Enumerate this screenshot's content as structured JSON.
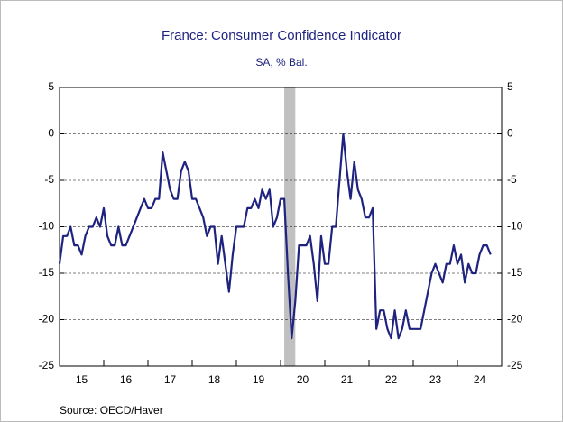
{
  "chart_data": {
    "type": "line",
    "title": "France: Consumer Confidence Indicator",
    "subtitle": "SA, % Bal.",
    "source": "Source:  OECD/Haver",
    "x": [
      2015,
      2015.083,
      2015.167,
      2015.25,
      2015.333,
      2015.417,
      2015.5,
      2015.583,
      2015.667,
      2015.75,
      2015.833,
      2015.917,
      2016,
      2016.083,
      2016.167,
      2016.25,
      2016.333,
      2016.417,
      2016.5,
      2016.583,
      2016.667,
      2016.75,
      2016.833,
      2016.917,
      2017,
      2017.083,
      2017.167,
      2017.25,
      2017.333,
      2017.417,
      2017.5,
      2017.583,
      2017.667,
      2017.75,
      2017.833,
      2017.917,
      2018,
      2018.083,
      2018.167,
      2018.25,
      2018.333,
      2018.417,
      2018.5,
      2018.583,
      2018.667,
      2018.75,
      2018.833,
      2018.917,
      2019,
      2019.083,
      2019.167,
      2019.25,
      2019.333,
      2019.417,
      2019.5,
      2019.583,
      2019.667,
      2019.75,
      2019.833,
      2019.917,
      2020,
      2020.083,
      2020.167,
      2020.25,
      2020.333,
      2020.417,
      2020.5,
      2020.583,
      2020.667,
      2020.75,
      2020.833,
      2020.917,
      2021,
      2021.083,
      2021.167,
      2021.25,
      2021.333,
      2021.417,
      2021.5,
      2021.583,
      2021.667,
      2021.75,
      2021.833,
      2021.917,
      2022,
      2022.083,
      2022.167,
      2022.25,
      2022.333,
      2022.417,
      2022.5,
      2022.583,
      2022.667,
      2022.75,
      2022.833,
      2022.917,
      2023,
      2023.083,
      2023.167,
      2023.25,
      2023.333,
      2023.417,
      2023.5,
      2023.583,
      2023.667,
      2023.75,
      2023.833,
      2023.917,
      2024,
      2024.083,
      2024.167,
      2024.25,
      2024.333,
      2024.417,
      2024.5,
      2024.583,
      2024.667,
      2024.75
    ],
    "series": [
      {
        "name": "Consumer Confidence Indicator",
        "color": "#1f2380",
        "values": [
          -14,
          -11,
          -11,
          -10,
          -12,
          -12,
          -13,
          -11,
          -10,
          -10,
          -9,
          -10,
          -8,
          -11,
          -12,
          -12,
          -10,
          -12,
          -12,
          -11,
          -10,
          -9,
          -8,
          -7,
          -8,
          -8,
          -7,
          -7,
          -2,
          -4,
          -6,
          -7,
          -7,
          -4,
          -3,
          -4,
          -7,
          -7,
          -8,
          -9,
          -11,
          -10,
          -10,
          -14,
          -11,
          -14,
          -17,
          -13,
          -10,
          -10,
          -10,
          -8,
          -8,
          -7,
          -8,
          -6,
          -7,
          -6,
          -10,
          -9,
          -7,
          -7,
          -15,
          -22,
          -18,
          -12,
          -12,
          -12,
          -11,
          -14,
          -18,
          -11,
          -14,
          -14,
          -10,
          -10,
          -5,
          0,
          -4,
          -7,
          -3,
          -6,
          -7,
          -9,
          -9,
          -8,
          -21,
          -19,
          -19,
          -21,
          -22,
          -19,
          -22,
          -21,
          -19,
          -21,
          -21,
          -21,
          -21,
          -19,
          -17,
          -15,
          -14,
          -15,
          -16,
          -14,
          -14,
          -12,
          -14,
          -13,
          -16,
          -14,
          -15,
          -15,
          -13,
          -12,
          -12,
          -13
        ]
      }
    ],
    "recession": [
      2020.083,
      2020.333
    ],
    "xlim": [
      2015,
      2025
    ],
    "xticks": [
      {
        "value": 2015,
        "label": "15"
      },
      {
        "value": 2016,
        "label": "16"
      },
      {
        "value": 2017,
        "label": "17"
      },
      {
        "value": 2018,
        "label": "18"
      },
      {
        "value": 2019,
        "label": "19"
      },
      {
        "value": 2020,
        "label": "20"
      },
      {
        "value": 2021,
        "label": "21"
      },
      {
        "value": 2022,
        "label": "22"
      },
      {
        "value": 2023,
        "label": "23"
      },
      {
        "value": 2024,
        "label": "24"
      }
    ],
    "ylim": [
      -25,
      5
    ],
    "yticks": [
      -25,
      -20,
      -15,
      -10,
      -5,
      0,
      5
    ],
    "grid": true
  }
}
